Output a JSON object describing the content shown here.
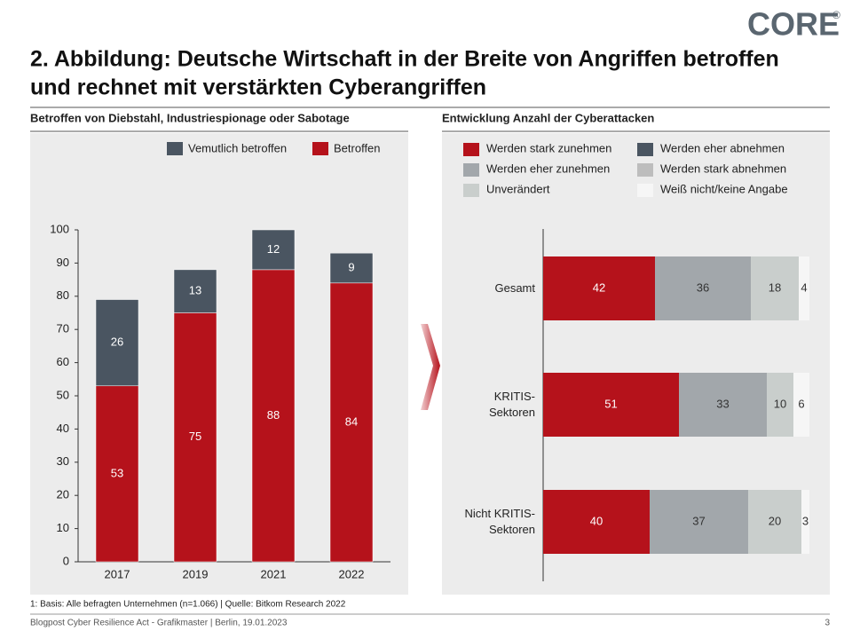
{
  "logo": "CORE",
  "logo_mark": "®",
  "title": [
    "2. Abbildung: Deutsche Wirtschaft in der Breite von Angriffen betroffen",
    "und rechnet mit verstärkten Cyberangriffen"
  ],
  "chart_data": [
    {
      "type": "bar",
      "stacked": true,
      "title": "Betroffen von Diebstahl, Industriespionage oder Sabotage",
      "categories": [
        "2017",
        "2019",
        "2021",
        "2022"
      ],
      "series": [
        {
          "name": "Betroffen",
          "color": "#b5121b",
          "values": [
            53,
            75,
            88,
            84
          ]
        },
        {
          "name": "Vemutlich betroffen",
          "color": "#4a5561",
          "values": [
            26,
            13,
            12,
            9
          ]
        }
      ],
      "ylim": [
        0,
        100
      ],
      "yticks": [
        0,
        10,
        20,
        30,
        40,
        50,
        60,
        70,
        80,
        90,
        100
      ],
      "grid": false
    },
    {
      "type": "barh",
      "stacked": true,
      "title": "Entwicklung Anzahl der Cyberattacken",
      "categories": [
        "Gesamt",
        "KRITIS-\nSektoren",
        "Nicht KRITIS-\nSektoren"
      ],
      "series": [
        {
          "name": "Werden stark zunehmen",
          "color": "#b5121b",
          "values": [
            42,
            51,
            40
          ]
        },
        {
          "name": "Werden eher zunehmen",
          "color": "#a2a7ab",
          "values": [
            36,
            33,
            37
          ]
        },
        {
          "name": "Unverändert",
          "color": "#c9cecc",
          "values": [
            18,
            10,
            20
          ]
        },
        {
          "name": "Werden eher abnehmen",
          "color": "#4a5561",
          "values": [
            0,
            0,
            0
          ]
        },
        {
          "name": "Werden stark abnehmen",
          "color": "#bdbdbd",
          "values": [
            0,
            0,
            0
          ]
        },
        {
          "name": "Weiß nicht/keine Angabe",
          "color": "#f6f6f6",
          "values": [
            4,
            6,
            3
          ]
        }
      ],
      "xlim": [
        0,
        100
      ],
      "grid": false
    }
  ],
  "footnote": "1: Basis: Alle befragten Unternehmen (n=1.066) | Quelle: Bitkom Research 2022",
  "footer": "Blogpost Cyber Resilience Act - Grafikmaster | Berlin, 19.01.2023",
  "page_number": "3"
}
